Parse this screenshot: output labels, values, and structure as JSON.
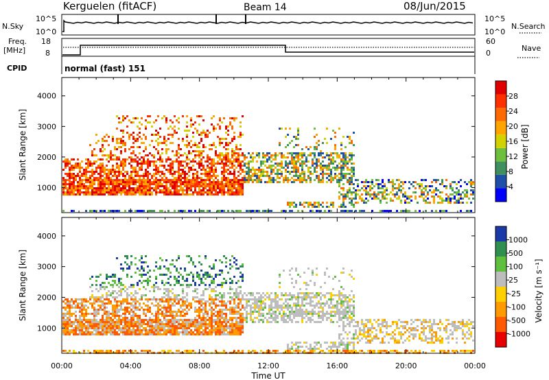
{
  "header": {
    "station": "Kerguelen (fitACF)",
    "beam": "Beam 14",
    "date": "08/Jun/2015"
  },
  "top_panels": {
    "nsky": {
      "left_label": "N.Sky",
      "left_ticks": [
        "10^5",
        "10^0"
      ],
      "right_label": "N.Search",
      "right_ticks": [
        "10^5",
        "10^0"
      ]
    },
    "freq": {
      "left_label_line1": "Freq.",
      "left_label_line2": "[MHz]",
      "left_ticks": [
        "18",
        "8"
      ],
      "right_label": "Nave",
      "right_ticks": [
        "60",
        "0"
      ]
    },
    "cpid": {
      "label": "CPID",
      "value": "normal (fast) 151"
    }
  },
  "colors": {
    "power_scale": [
      "#0000ff",
      "#1f4fa8",
      "#3f8f5f",
      "#6fbf3f",
      "#d2d200",
      "#ffa500",
      "#ff6a00",
      "#ff3000",
      "#e00000"
    ],
    "velocity_scale": [
      "#1a3aa8",
      "#2f8f4f",
      "#5fbf3f",
      "#bdbdbd",
      "#ffd000",
      "#ff9a00",
      "#ff5a00",
      "#e80000"
    ]
  },
  "chart_data": [
    {
      "type": "heatmap",
      "name": "power",
      "ylabel": "Slant Range [km]",
      "ylim": [
        180,
        4600
      ],
      "yticks": [
        "1000",
        "2000",
        "3000",
        "4000"
      ],
      "xlim_hours": [
        0,
        24
      ],
      "colorbar_label": "Power [dB]",
      "colorbar_ticks": [
        "4",
        "8",
        "12",
        "16",
        "20",
        "24",
        "28"
      ]
    },
    {
      "type": "heatmap",
      "name": "velocity",
      "ylabel": "Slant Range [km]",
      "ylim": [
        180,
        4600
      ],
      "yticks": [
        "1000",
        "2000",
        "3000",
        "4000"
      ],
      "xlim_hours": [
        0,
        24
      ],
      "colorbar_label": "Velocity [m s⁻¹]",
      "colorbar_ticks": [
        "1000",
        "500",
        "100",
        "25",
        "-25",
        "-100",
        "-500",
        "-1000"
      ]
    }
  ],
  "x_axis": {
    "ticks": [
      "00:00",
      "04:00",
      "08:00",
      "12:00",
      "16:00",
      "20:00",
      "00:00"
    ],
    "label": "Time UT"
  }
}
